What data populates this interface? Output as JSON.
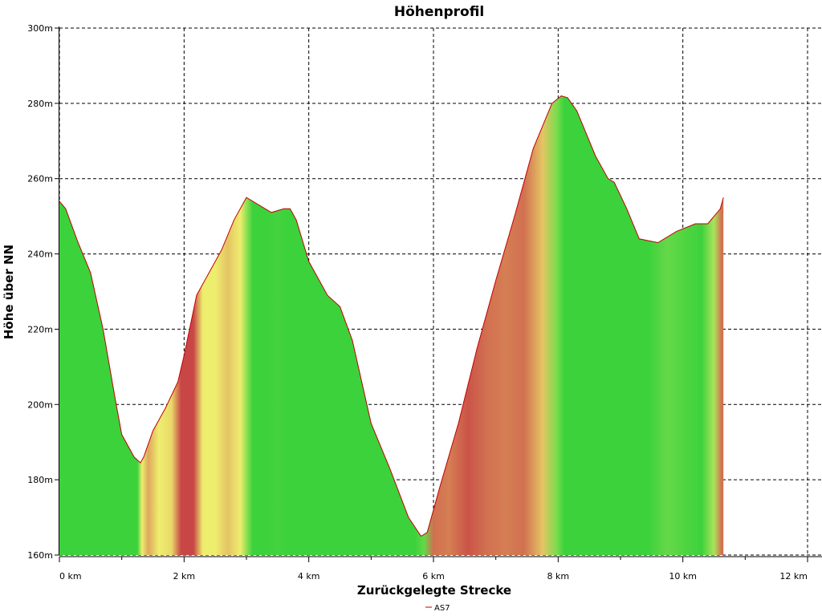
{
  "chart_data": {
    "type": "area",
    "title": "Höhenprofil",
    "xlabel": "Zurückgelegte Strecke",
    "ylabel": "Höhe über NN",
    "xlim": [
      0,
      12
    ],
    "ylim": [
      160,
      300
    ],
    "xticks": [
      0,
      2,
      4,
      6,
      8,
      10,
      12
    ],
    "xtick_labels": [
      "0 km",
      "2 km",
      "4 km",
      "6 km",
      "8 km",
      "10 km",
      "12 km"
    ],
    "yticks": [
      160,
      180,
      200,
      220,
      240,
      260,
      280,
      300
    ],
    "ytick_labels": [
      "160m",
      "180m",
      "200m",
      "220m",
      "240m",
      "260m",
      "280m",
      "300m"
    ],
    "grid": true,
    "legend_position": "bottom-center",
    "series": [
      {
        "name": "AS7",
        "color": "#c00000",
        "x": [
          0,
          0.1,
          0.3,
          0.5,
          0.7,
          0.9,
          1.0,
          1.2,
          1.3,
          1.35,
          1.5,
          1.7,
          1.9,
          2.0,
          2.1,
          2.2,
          2.4,
          2.6,
          2.8,
          3.0,
          3.2,
          3.4,
          3.6,
          3.7,
          3.8,
          4.0,
          4.3,
          4.5,
          4.7,
          5.0,
          5.3,
          5.6,
          5.8,
          5.9,
          6.1,
          6.4,
          6.7,
          7.0,
          7.3,
          7.6,
          7.9,
          8.05,
          8.15,
          8.3,
          8.6,
          8.8,
          8.9,
          9.1,
          9.3,
          9.6,
          9.9,
          10.2,
          10.4,
          10.6,
          10.65
        ],
        "y": [
          254,
          252,
          243,
          235,
          220,
          201,
          192,
          186,
          184.5,
          186,
          193,
          199,
          206,
          213,
          221,
          229,
          235,
          241,
          249,
          255,
          253,
          251,
          252,
          252,
          249,
          238,
          229,
          226,
          217,
          195,
          183,
          170,
          165,
          166,
          178,
          195,
          215,
          233,
          250,
          268,
          280,
          282,
          281.5,
          278,
          266,
          260,
          259,
          252,
          244,
          243,
          246,
          248,
          248,
          252,
          255
        ]
      }
    ]
  }
}
